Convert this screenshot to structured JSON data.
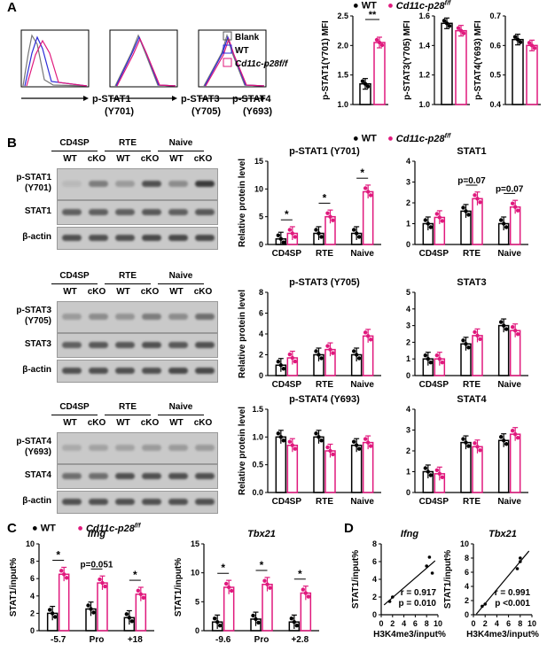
{
  "panels": {
    "a": "A",
    "b": "B",
    "c": "C",
    "d": "D"
  },
  "legend": {
    "wt": "WT",
    "ko": "Cd11c-p28f/f",
    "ko_base": "Cd11c-p28",
    "ko_sup": "f/f"
  },
  "colors": {
    "wt": "#000000",
    "ko": "#e0197d",
    "blank": "#888888",
    "wt_line": "#2c2cd8"
  },
  "A": {
    "flow_legend": [
      "Blank",
      "WT",
      "Cd11c-p28f/f"
    ],
    "flow_xlabels": [
      [
        "p-STAT1",
        "(Y701)"
      ],
      [
        "p-STAT3",
        "(Y705)"
      ],
      [
        "p-STAT4",
        "(Y693)"
      ]
    ],
    "mfi": [
      {
        "ylabel": "p-STAT1(Y701) MFI",
        "ticks": [
          "1.0",
          "1.5",
          "2.0",
          "2.5"
        ],
        "ylim": [
          1.0,
          2.5
        ],
        "wt": 1.35,
        "ko": 2.05,
        "sig": "**"
      },
      {
        "ylabel": "p-STAT3(Y705) MFI",
        "ticks": [
          "1.0",
          "1.2",
          "1.4",
          "1.6"
        ],
        "ylim": [
          1.0,
          1.6
        ],
        "wt": 1.55,
        "ko": 1.5,
        "sig": ""
      },
      {
        "ylabel": "p-STAT4(Y693) MFI",
        "ticks": [
          "0.4",
          "0.5",
          "0.6",
          "0.7"
        ],
        "ylim": [
          0.4,
          0.7
        ],
        "wt": 0.62,
        "ko": 0.6,
        "sig": ""
      }
    ]
  },
  "B": {
    "blot_headers": [
      "CD4SP",
      "RTE",
      "Naive"
    ],
    "lane_labels": [
      "WT",
      "cKO",
      "WT",
      "cKO",
      "WT",
      "cKO"
    ],
    "blots": [
      [
        "p-STAT1\n(Y701)",
        "STAT1",
        "β-actin"
      ],
      [
        "p-STAT3\n(Y705)",
        "STAT3",
        "β-actin"
      ],
      [
        "p-STAT4\n(Y693)",
        "STAT4",
        "β-actin"
      ]
    ],
    "ylabel": "Relative protein level",
    "categories": [
      "CD4SP",
      "RTE",
      "Naive"
    ]
  },
  "chart_data": [
    {
      "type": "bar",
      "title": "p-STAT1 (Y701)",
      "categories": [
        "CD4SP",
        "RTE",
        "Naive"
      ],
      "ylabel": "Relative protein level",
      "ylim": [
        0,
        15
      ],
      "ticks": [
        "0",
        "5",
        "10",
        "15"
      ],
      "series": [
        {
          "name": "WT",
          "values": [
            1,
            2,
            2
          ]
        },
        {
          "name": "Cd11c-p28f/f",
          "values": [
            2,
            5,
            9.5
          ]
        }
      ],
      "annotations": [
        "*",
        "*",
        "*"
      ]
    },
    {
      "type": "bar",
      "title": "STAT1",
      "categories": [
        "CD4SP",
        "RTE",
        "Naive"
      ],
      "ylabel": "",
      "ylim": [
        0,
        4
      ],
      "ticks": [
        "0",
        "1",
        "2",
        "3",
        "4"
      ],
      "series": [
        {
          "name": "WT",
          "values": [
            1,
            1.6,
            1
          ]
        },
        {
          "name": "Cd11c-p28f/f",
          "values": [
            1.3,
            2.2,
            1.8
          ]
        }
      ],
      "annotations": [
        "",
        "p=0.07",
        "p=0.07"
      ]
    },
    {
      "type": "bar",
      "title": "p-STAT3 (Y705)",
      "categories": [
        "CD4SP",
        "RTE",
        "Naive"
      ],
      "ylabel": "Relative protein level",
      "ylim": [
        0,
        8
      ],
      "ticks": [
        "0",
        "2",
        "4",
        "6",
        "8"
      ],
      "series": [
        {
          "name": "WT",
          "values": [
            1,
            2,
            2
          ]
        },
        {
          "name": "Cd11c-p28f/f",
          "values": [
            1.7,
            2.5,
            3.8
          ]
        }
      ],
      "annotations": [
        "",
        "",
        ""
      ]
    },
    {
      "type": "bar",
      "title": "STAT3",
      "categories": [
        "CD4SP",
        "RTE",
        "Naive"
      ],
      "ylabel": "",
      "ylim": [
        0,
        5
      ],
      "ticks": [
        "0",
        "1",
        "2",
        "3",
        "4",
        "5"
      ],
      "series": [
        {
          "name": "WT",
          "values": [
            1,
            1.9,
            3
          ]
        },
        {
          "name": "Cd11c-p28f/f",
          "values": [
            1,
            2.4,
            2.7
          ]
        }
      ],
      "annotations": [
        "",
        "",
        ""
      ]
    },
    {
      "type": "bar",
      "title": "p-STAT4 (Y693)",
      "categories": [
        "CD4SP",
        "RTE",
        "Naive"
      ],
      "ylabel": "Relative protein level",
      "ylim": [
        0,
        1.5
      ],
      "ticks": [
        "0.0",
        "0.5",
        "1.0",
        "1.5"
      ],
      "series": [
        {
          "name": "WT",
          "values": [
            1,
            1,
            0.85
          ]
        },
        {
          "name": "Cd11c-p28f/f",
          "values": [
            0.85,
            0.75,
            0.9
          ]
        }
      ],
      "annotations": [
        "",
        "",
        ""
      ]
    },
    {
      "type": "bar",
      "title": "STAT4",
      "categories": [
        "CD4SP",
        "RTE",
        "Naive"
      ],
      "ylabel": "",
      "ylim": [
        0,
        4
      ],
      "ticks": [
        "0",
        "1",
        "2",
        "3",
        "4"
      ],
      "series": [
        {
          "name": "WT",
          "values": [
            1,
            2.4,
            2.5
          ]
        },
        {
          "name": "Cd11c-p28f/f",
          "values": [
            0.9,
            2.2,
            2.8
          ]
        }
      ],
      "annotations": [
        "",
        "",
        ""
      ]
    },
    {
      "type": "bar",
      "title": "Ifng",
      "categories": [
        "-5.7",
        "Pro",
        "+18"
      ],
      "ylabel": "STAT1/input%",
      "ylim": [
        0,
        10
      ],
      "ticks": [
        "0",
        "2",
        "4",
        "6",
        "8",
        "10"
      ],
      "series": [
        {
          "name": "WT",
          "values": [
            2,
            2.5,
            1.5
          ]
        },
        {
          "name": "Cd11c-p28f/f",
          "values": [
            6.5,
            5.5,
            4.2
          ]
        }
      ],
      "annotations": [
        "*",
        "p=0.051",
        "*"
      ]
    },
    {
      "type": "bar",
      "title": "Tbx21",
      "categories": [
        "-9.6",
        "Pro",
        "+2.8"
      ],
      "ylabel": "STAT1/input%",
      "ylim": [
        0,
        15
      ],
      "ticks": [
        "0",
        "5",
        "10",
        "15"
      ],
      "series": [
        {
          "name": "WT",
          "values": [
            1.5,
            2,
            1.5
          ]
        },
        {
          "name": "Cd11c-p28f/f",
          "values": [
            7.5,
            8,
            6.5
          ]
        }
      ],
      "annotations": [
        "*",
        "*",
        "*"
      ]
    },
    {
      "type": "scatter",
      "title": "Ifng",
      "xlabel": "H3K4me3/input%",
      "ylabel": "STAT1/input%",
      "xlim": [
        0,
        10
      ],
      "ylim": [
        0,
        8
      ],
      "xticks": [
        "0",
        "2",
        "4",
        "6",
        "8",
        "10"
      ],
      "yticks": [
        "0",
        "2",
        "4",
        "6",
        "8"
      ],
      "points": [
        [
          1.5,
          1.5
        ],
        [
          2,
          2
        ],
        [
          8,
          5.5
        ],
        [
          8.5,
          6.5
        ],
        [
          9,
          4.7
        ]
      ],
      "stats": [
        "r = 0.917",
        "p = 0.010"
      ]
    },
    {
      "type": "scatter",
      "title": "Tbx21",
      "xlabel": "H3K4me3/input%",
      "ylabel": "STAT1/input%",
      "xlim": [
        0,
        10
      ],
      "ylim": [
        0,
        10
      ],
      "xticks": [
        "0",
        "2",
        "4",
        "6",
        "8",
        "10"
      ],
      "yticks": [
        "0",
        "2",
        "4",
        "6",
        "8",
        "10"
      ],
      "points": [
        [
          1.5,
          1.2
        ],
        [
          2,
          1.5
        ],
        [
          7.5,
          6.5
        ],
        [
          8,
          7.5
        ],
        [
          8,
          8
        ]
      ],
      "stats": [
        "r = 0.991",
        "p <0.001"
      ]
    }
  ]
}
